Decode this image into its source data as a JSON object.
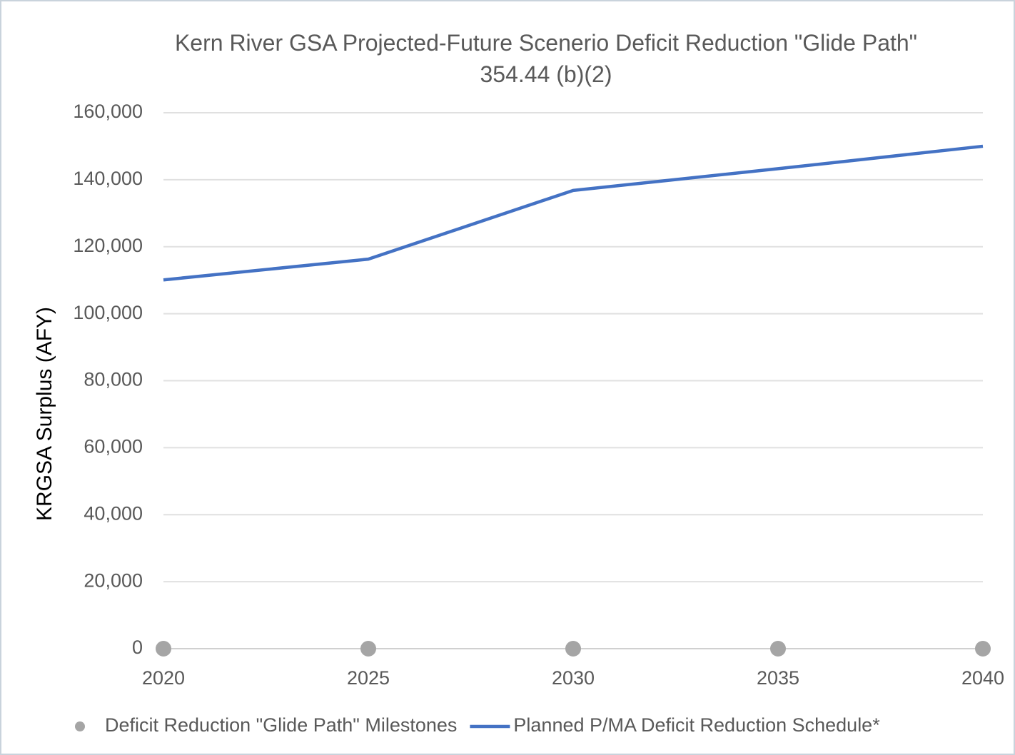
{
  "chart_data": {
    "type": "line",
    "title": "Kern River GSA Projected-Future Scenerio Deficit Reduction \"Glide Path\" 354.44 (b)(2)",
    "y_label": "KRGSA Surplus (AFY)",
    "x": [
      2020,
      2025,
      2030,
      2035,
      2040
    ],
    "series": [
      {
        "name": "Deficit Reduction \"Glide Path\" Milestones",
        "color": "#a5a5a5",
        "style": "markers",
        "values": [
          0,
          0,
          0,
          0,
          0
        ]
      },
      {
        "name": "Planned P/MA Deficit Reduction Schedule*",
        "color": "#4472c4",
        "style": "line",
        "values": [
          110100,
          116300,
          136800,
          143300,
          150000
        ]
      }
    ],
    "xlim": [
      2020,
      2040
    ],
    "xticks": [
      2020,
      2025,
      2030,
      2035,
      2040
    ],
    "ylim": [
      0,
      160000
    ],
    "yticks": [
      0,
      {
        "value": 20000,
        "label": "20,000"
      },
      {
        "value": 40000,
        "label": "40,000"
      },
      {
        "value": 60000,
        "label": "60,000"
      },
      {
        "value": 80000,
        "label": "80,000"
      },
      {
        "value": 100000,
        "label": "100,000"
      },
      {
        "value": 120000,
        "label": "120,000"
      },
      {
        "value": 140000,
        "label": "140,000"
      },
      {
        "value": 160000,
        "label": "160,000"
      }
    ],
    "grid": true,
    "legend": "bottom"
  }
}
